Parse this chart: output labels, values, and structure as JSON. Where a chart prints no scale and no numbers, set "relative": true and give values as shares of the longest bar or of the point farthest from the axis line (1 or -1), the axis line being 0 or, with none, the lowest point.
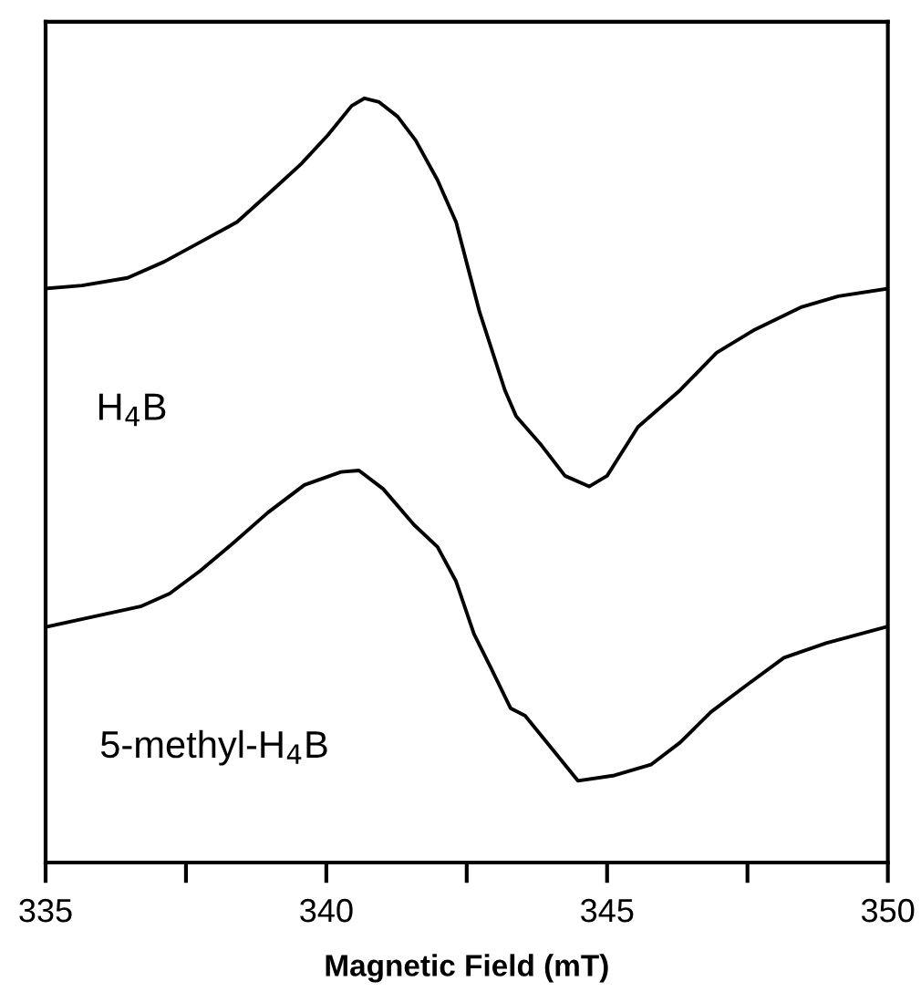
{
  "chart_data": {
    "type": "line",
    "xlabel": "Magnetic Field (mT)",
    "relative": true,
    "xlim": [
      335,
      350
    ],
    "xticks": [
      335,
      {
        "value": 337.5,
        "label": null
      },
      340,
      {
        "value": 342.5,
        "label": null
      },
      345,
      {
        "value": 347.5,
        "label": null
      },
      350
    ],
    "grid": false,
    "marker": "none",
    "line_style": "solid",
    "tick_labels": "x",
    "series": [
      {
        "name": "H$_{4}$B",
        "color": "#000000",
        "x": [
          335.0,
          335.65,
          336.46,
          337.11,
          337.76,
          338.41,
          339.06,
          339.55,
          340.03,
          340.45,
          340.68,
          340.94,
          341.27,
          341.59,
          341.98,
          342.31,
          342.73,
          343.18,
          343.38,
          343.83,
          344.25,
          344.68,
          345.0,
          345.55,
          346.3,
          346.95,
          347.6,
          348.47,
          349.12,
          350.0
        ],
        "values": [
          0.751,
          0.755,
          0.765,
          0.786,
          0.812,
          0.838,
          0.881,
          0.914,
          0.952,
          0.99,
          1.0,
          0.995,
          0.976,
          0.945,
          0.893,
          0.838,
          0.72,
          0.618,
          0.584,
          0.546,
          0.506,
          0.492,
          0.506,
          0.57,
          0.618,
          0.667,
          0.696,
          0.727,
          0.741,
          0.751
        ]
      },
      {
        "name": "5-methyl-H$_{4}$B",
        "color": "#000000",
        "x": [
          335.06,
          335.81,
          336.69,
          337.21,
          337.76,
          338.31,
          338.96,
          339.61,
          340.26,
          340.58,
          341.01,
          341.56,
          341.98,
          342.31,
          342.63,
          342.95,
          343.28,
          343.54,
          343.93,
          344.48,
          345.13,
          345.78,
          346.3,
          346.85,
          347.5,
          348.15,
          348.9,
          350.0
        ],
        "values": [
          0.309,
          0.321,
          0.335,
          0.352,
          0.382,
          0.416,
          0.458,
          0.494,
          0.511,
          0.513,
          0.489,
          0.442,
          0.413,
          0.368,
          0.299,
          0.252,
          0.202,
          0.192,
          0.157,
          0.107,
          0.114,
          0.128,
          0.157,
          0.197,
          0.233,
          0.268,
          0.287,
          0.309
        ]
      }
    ]
  }
}
